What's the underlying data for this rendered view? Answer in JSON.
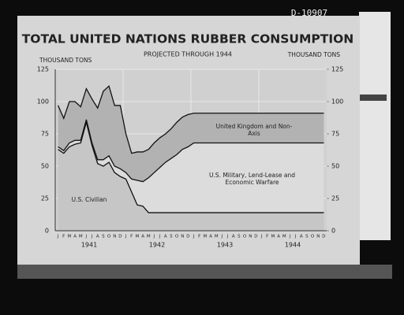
{
  "photo_id": "D-10907",
  "chart_data": {
    "type": "stacked_area",
    "title": "TOTAL UNITED NATIONS RUBBER CONSUMPTION",
    "subtitle": "PROJECTED THROUGH 1944",
    "y_label": "THOUSAND TONS",
    "y2_label": "THOUSAND TONS",
    "categories": [
      "J",
      "F",
      "M",
      "A",
      "M",
      "J",
      "J",
      "A",
      "S",
      "O",
      "N",
      "D",
      "J",
      "F",
      "M",
      "A",
      "M",
      "J",
      "J",
      "A",
      "S",
      "O",
      "N",
      "D",
      "J",
      "F",
      "M",
      "A",
      "M",
      "J",
      "J",
      "A",
      "S",
      "O",
      "N",
      "D",
      "J",
      "F",
      "M",
      "A",
      "M",
      "J",
      "J",
      "A",
      "S",
      "O",
      "N",
      "D"
    ],
    "years": [
      "1941",
      "1942",
      "1943",
      "1944"
    ],
    "ylim": [
      0,
      125
    ],
    "yticks": [
      0,
      25,
      50,
      75,
      100,
      125
    ],
    "y2lim": [
      0,
      125
    ],
    "y2ticks": [
      0,
      25,
      50,
      75,
      100,
      125
    ],
    "grid": true,
    "series": [
      {
        "name": "U.S. Civilian",
        "color": "#c6c6c6",
        "values": [
          63,
          60,
          65,
          67,
          68,
          84,
          66,
          52,
          50,
          53,
          45,
          42,
          40,
          30,
          20,
          19,
          14,
          14,
          14,
          14,
          14,
          14,
          14,
          14,
          14,
          14,
          14,
          14,
          14,
          14,
          14,
          14,
          14,
          14,
          14,
          14,
          14,
          14,
          14,
          14,
          14,
          14,
          14,
          14,
          14,
          14,
          14,
          14
        ]
      },
      {
        "name": "U.S. Military, Lend-Lease and Economic Warfare",
        "color": "#dcdcdc",
        "values": [
          2,
          2,
          3,
          3,
          2,
          2,
          2,
          3,
          5,
          5,
          5,
          6,
          5,
          10,
          19,
          19,
          27,
          31,
          35,
          39,
          42,
          45,
          49,
          51,
          54,
          54,
          54,
          54,
          54,
          54,
          54,
          54,
          54,
          54,
          54,
          54,
          54,
          54,
          54,
          54,
          54,
          54,
          54,
          54,
          54,
          54,
          54,
          54
        ]
      },
      {
        "name": "United Kingdom and Non-Axis",
        "color": "#b2b2b2",
        "values": [
          32,
          25,
          32,
          30,
          26,
          24,
          34,
          40,
          53,
          54,
          47,
          49,
          30,
          20,
          22,
          23,
          22,
          23,
          23,
          22,
          23,
          25,
          25,
          25,
          23,
          23,
          23,
          23,
          23,
          23,
          23,
          23,
          23,
          23,
          23,
          23,
          23,
          23,
          23,
          23,
          23,
          23,
          23,
          23,
          23,
          23,
          23,
          23
        ]
      }
    ]
  }
}
